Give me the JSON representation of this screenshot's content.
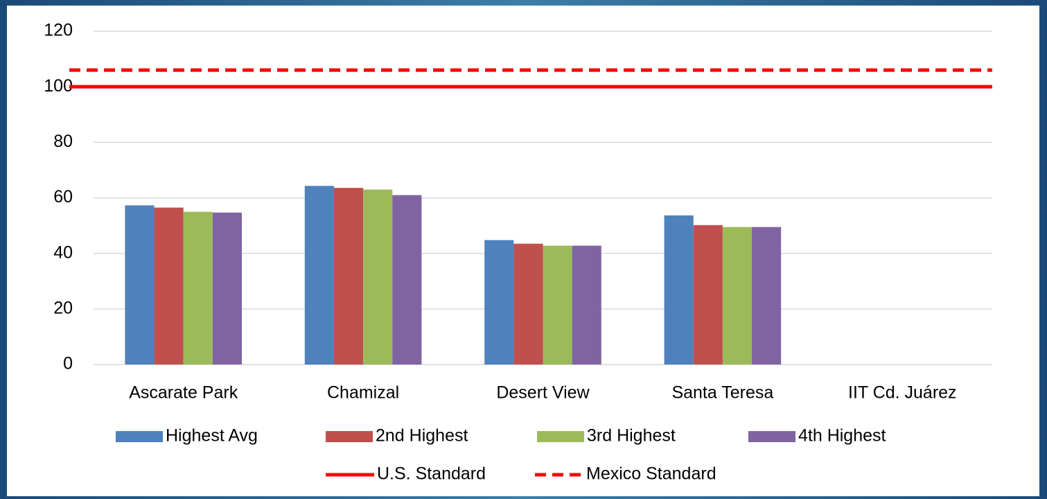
{
  "chart_data": {
    "type": "bar",
    "categories": [
      "Ascarate Park",
      "Chamizal",
      "Desert View",
      "Santa Teresa",
      "IIT Cd. Juárez"
    ],
    "series": [
      {
        "name": "Highest Avg",
        "color": "#4f81bd",
        "values": [
          57.3,
          64.3,
          44.8,
          53.7,
          null
        ]
      },
      {
        "name": "2nd Highest",
        "color": "#c0504d",
        "values": [
          56.5,
          63.6,
          43.5,
          50.2,
          null
        ]
      },
      {
        "name": "3rd Highest",
        "color": "#9bbb59",
        "values": [
          55,
          63,
          42.8,
          49.5,
          null
        ]
      },
      {
        "name": "4th Highest",
        "color": "#8064a2",
        "values": [
          54.7,
          61,
          42.8,
          49.5,
          null
        ]
      }
    ],
    "reference_lines": [
      {
        "name": "U.S. Standard",
        "value": 100,
        "color": "#ff0000",
        "style": "solid"
      },
      {
        "name": "Mexico Standard",
        "value": 106,
        "color": "#ff0000",
        "style": "dashed"
      }
    ],
    "ylim": [
      0,
      120
    ],
    "yticks": [
      0,
      20,
      40,
      60,
      80,
      100,
      120
    ],
    "grid": true
  }
}
